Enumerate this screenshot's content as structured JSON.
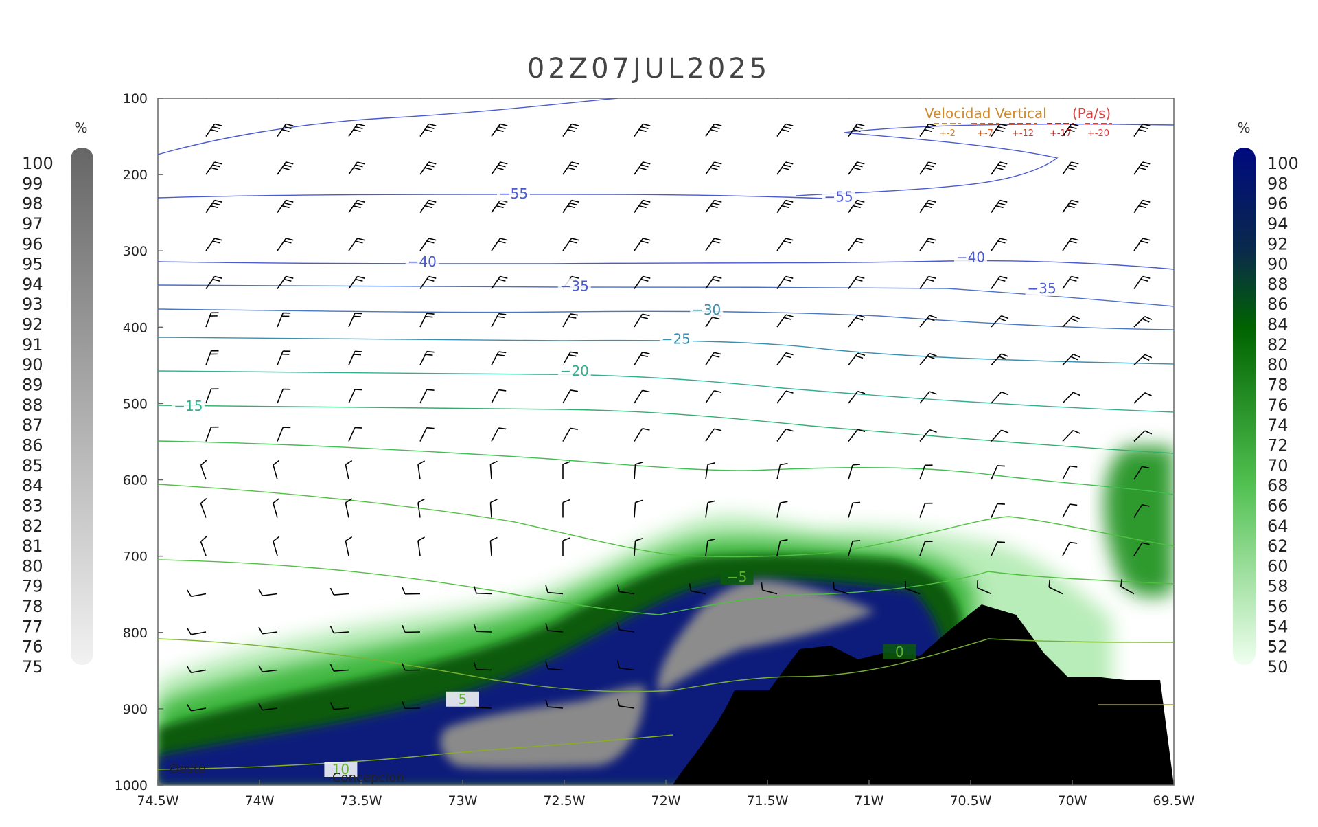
{
  "chart_data": {
    "type": "contour",
    "title": "02Z07JUL2025",
    "x_axis": {
      "ticks": [
        "74.5W",
        "74W",
        "73.5W",
        "73W",
        "72.5W",
        "72W",
        "71.5W",
        "71W",
        "70.5W",
        "70W",
        "69.5W"
      ],
      "range": [
        -74.5,
        -69.5
      ]
    },
    "y_axis": {
      "ticks": [
        "100",
        "200",
        "300",
        "400",
        "500",
        "600",
        "700",
        "800",
        "900",
        "1000"
      ],
      "range": [
        100,
        1000
      ],
      "inverted": true
    },
    "temperature_contour_labels": [
      {
        "text": "-55",
        "lon": -72.75,
        "p": 228
      },
      {
        "text": "-55",
        "lon": -71.15,
        "p": 232
      },
      {
        "text": "-40",
        "lon": -73.2,
        "p": 317
      },
      {
        "text": "-40",
        "lon": -70.5,
        "p": 311
      },
      {
        "text": "-35",
        "lon": -72.45,
        "p": 349
      },
      {
        "text": "-35",
        "lon": -70.15,
        "p": 352
      },
      {
        "text": "-30",
        "lon": -71.8,
        "p": 380
      },
      {
        "text": "-25",
        "lon": -71.95,
        "p": 418
      },
      {
        "text": "-20",
        "lon": -72.45,
        "p": 460
      },
      {
        "text": "-15",
        "lon": -74.35,
        "p": 506
      },
      {
        "text": "-5",
        "lon": -71.65,
        "p": 730
      },
      {
        "text": "0",
        "lon": -70.85,
        "p": 828
      },
      {
        "text": "5",
        "lon": -73.0,
        "p": 890
      },
      {
        "text": "10",
        "lon": -73.6,
        "p": 982
      }
    ],
    "vertical_velocity_legend": {
      "title": "Velocidad Vertical",
      "unit": "(Pa/s)",
      "levels": [
        "+-2",
        "+-7",
        "+-12",
        "+-17",
        "+-20"
      ],
      "colors": [
        "#d18a2a",
        "#d0602a",
        "#c8402a",
        "#b02a2a",
        "#e03a3a"
      ]
    },
    "annotations": [
      "Oeste",
      "Concepcion"
    ],
    "left_colorbar": {
      "unit": "%",
      "labels": [
        "100",
        "99",
        "98",
        "97",
        "96",
        "95",
        "94",
        "93",
        "92",
        "91",
        "90",
        "89",
        "88",
        "87",
        "86",
        "85",
        "84",
        "83",
        "82",
        "81",
        "80",
        "79",
        "78",
        "77",
        "76",
        "75"
      ]
    },
    "right_colorbar": {
      "unit": "%",
      "labels": [
        "100",
        "98",
        "96",
        "94",
        "92",
        "90",
        "88",
        "86",
        "84",
        "82",
        "80",
        "78",
        "76",
        "74",
        "72",
        "70",
        "68",
        "66",
        "64",
        "62",
        "60",
        "58",
        "56",
        "54",
        "52",
        "50"
      ]
    },
    "colors": {
      "humidity_green_dark": "#0a5a0a",
      "humidity_navy": "#0a1a7a",
      "cloud_gray": "#8a8a8a",
      "terrain": "#000000",
      "cold_contours": "#4a5ad0",
      "warm_contours": "#5ac040"
    }
  }
}
